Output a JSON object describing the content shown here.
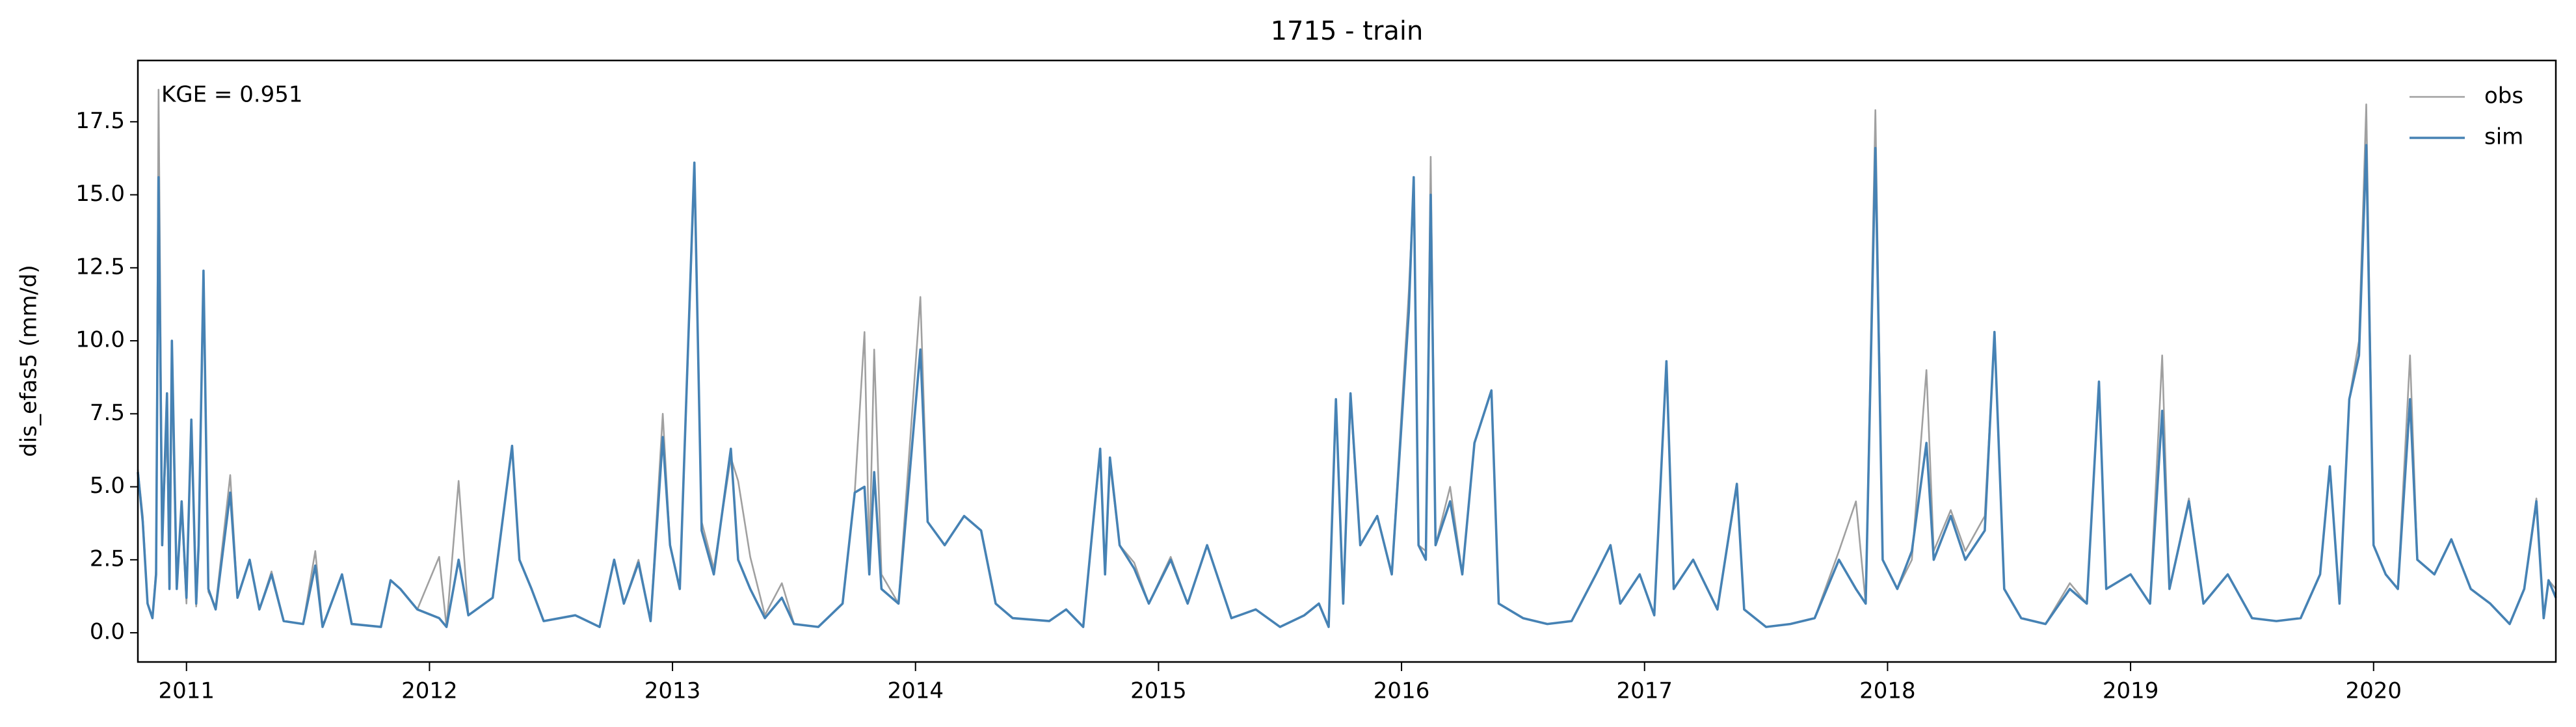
{
  "chart_data": {
    "type": "line",
    "title": "1715 - train",
    "ylabel": "dis_efas5 (mm/d)",
    "annotation": "KGE = 0.951",
    "legend": "upper right",
    "xlim": [
      2010.8,
      2020.75
    ],
    "xticks": [
      2011,
      2012,
      2013,
      2014,
      2015,
      2016,
      2017,
      2018,
      2019,
      2020
    ],
    "ylim": [
      -1.0,
      19.6
    ],
    "yticks": [
      {
        "value": 0,
        "label": "0.0"
      },
      2.5,
      {
        "value": 5,
        "label": "5.0"
      },
      7.5,
      {
        "value": 10,
        "label": "10.0"
      },
      12.5,
      {
        "value": 15,
        "label": "15.0"
      },
      17.5
    ],
    "x": [
      2010.8,
      2010.82,
      2010.84,
      2010.86,
      2010.875,
      2010.885,
      2010.9,
      2010.92,
      2010.93,
      2010.94,
      2010.96,
      2010.98,
      2011,
      2011.02,
      2011.04,
      2011.05,
      2011.07,
      2011.09,
      2011.12,
      2011.18,
      2011.21,
      2011.26,
      2011.3,
      2011.35,
      2011.4,
      2011.48,
      2011.53,
      2011.56,
      2011.64,
      2011.68,
      2011.8,
      2011.84,
      2011.88,
      2011.95,
      2012.04,
      2012.07,
      2012.12,
      2012.16,
      2012.26,
      2012.34,
      2012.37,
      2012.42,
      2012.47,
      2012.6,
      2012.7,
      2012.76,
      2012.8,
      2012.86,
      2012.91,
      2012.96,
      2012.99,
      2013.03,
      2013.09,
      2013.12,
      2013.17,
      2013.24,
      2013.27,
      2013.32,
      2013.38,
      2013.45,
      2013.5,
      2013.6,
      2013.7,
      2013.75,
      2013.79,
      2013.81,
      2013.83,
      2013.86,
      2013.93,
      2014.02,
      2014.05,
      2014.12,
      2014.2,
      2014.27,
      2014.33,
      2014.4,
      2014.55,
      2014.62,
      2014.69,
      2014.76,
      2014.78,
      2014.8,
      2014.84,
      2014.9,
      2014.96,
      2015.05,
      2015.12,
      2015.2,
      2015.3,
      2015.4,
      2015.5,
      2015.6,
      2015.66,
      2015.7,
      2015.73,
      2015.76,
      2015.79,
      2015.83,
      2015.9,
      2015.96,
      2016.03,
      2016.05,
      2016.07,
      2016.1,
      2016.12,
      2016.14,
      2016.2,
      2016.25,
      2016.3,
      2016.37,
      2016.4,
      2016.5,
      2016.6,
      2016.7,
      2016.8,
      2016.86,
      2016.9,
      2016.98,
      2017.04,
      2017.09,
      2017.12,
      2017.2,
      2017.3,
      2017.38,
      2017.41,
      2017.5,
      2017.6,
      2017.7,
      2017.8,
      2017.87,
      2017.91,
      2017.95,
      2017.98,
      2018.04,
      2018.1,
      2018.16,
      2018.19,
      2018.26,
      2018.32,
      2018.4,
      2018.44,
      2018.48,
      2018.55,
      2018.65,
      2018.75,
      2018.82,
      2018.87,
      2018.9,
      2019,
      2019.08,
      2019.13,
      2019.16,
      2019.24,
      2019.3,
      2019.4,
      2019.5,
      2019.6,
      2019.7,
      2019.78,
      2019.82,
      2019.86,
      2019.9,
      2019.94,
      2019.97,
      2020,
      2020.05,
      2020.1,
      2020.15,
      2020.18,
      2020.25,
      2020.32,
      2020.4,
      2020.48,
      2020.56,
      2020.62,
      2020.67,
      2020.7,
      2020.72,
      2020.75
    ],
    "series": [
      {
        "name": "obs",
        "color": "#a0a0a0",
        "values": [
          5.6,
          4.0,
          1.0,
          0.5,
          2.2,
          18.6,
          3.5,
          7.0,
          1.6,
          9.0,
          1.5,
          4.3,
          1.0,
          7.3,
          0.9,
          2.8,
          12.2,
          1.4,
          0.9,
          5.4,
          1.2,
          2.5,
          0.8,
          2.1,
          0.4,
          0.3,
          2.8,
          0.2,
          2.0,
          0.3,
          0.2,
          1.8,
          1.5,
          0.8,
          2.6,
          0.2,
          5.2,
          0.6,
          1.2,
          6.4,
          2.5,
          1.5,
          0.4,
          0.6,
          0.2,
          2.5,
          1.0,
          2.5,
          0.4,
          7.5,
          3.0,
          1.5,
          15.8,
          3.8,
          2.2,
          6.0,
          5.2,
          2.6,
          0.6,
          1.7,
          0.3,
          0.2,
          1.0,
          4.8,
          10.3,
          2.5,
          9.7,
          2.0,
          1.0,
          11.5,
          3.8,
          3.0,
          4.0,
          3.5,
          1.0,
          0.5,
          0.4,
          0.8,
          0.2,
          6.2,
          2.0,
          5.8,
          3.0,
          2.4,
          1.0,
          2.6,
          1.0,
          3.0,
          0.5,
          0.8,
          0.2,
          0.6,
          1.0,
          0.2,
          7.8,
          1.0,
          8.0,
          3.0,
          4.0,
          2.0,
          11.7,
          15.4,
          3.0,
          2.8,
          16.3,
          3.0,
          5.0,
          2.0,
          6.5,
          8.3,
          1.0,
          0.5,
          0.3,
          0.4,
          2.0,
          3.0,
          1.0,
          2.0,
          0.6,
          9.3,
          1.5,
          2.5,
          0.8,
          5.0,
          0.8,
          0.2,
          0.3,
          0.5,
          2.8,
          4.5,
          1.0,
          17.9,
          2.5,
          1.5,
          2.5,
          9.0,
          2.8,
          4.2,
          2.8,
          4.0,
          10.2,
          1.5,
          0.5,
          0.3,
          1.7,
          1.0,
          8.5,
          1.5,
          2.0,
          1.0,
          9.5,
          1.5,
          4.6,
          1.0,
          2.0,
          0.5,
          0.4,
          0.5,
          2.0,
          5.7,
          1.0,
          8.0,
          10.0,
          18.1,
          3.0,
          2.0,
          1.5,
          9.5,
          2.5,
          2.0,
          3.2,
          1.5,
          1.0,
          0.3,
          1.5,
          4.6,
          0.5,
          1.8,
          1.5
        ]
      },
      {
        "name": "sim",
        "color": "#4682b4",
        "values": [
          5.5,
          3.8,
          1.0,
          0.5,
          2.0,
          15.6,
          3.0,
          8.2,
          1.5,
          10.0,
          1.5,
          4.5,
          1.2,
          7.3,
          1.0,
          3.0,
          12.4,
          1.5,
          0.8,
          4.8,
          1.2,
          2.5,
          0.8,
          2.0,
          0.4,
          0.3,
          2.3,
          0.2,
          2.0,
          0.3,
          0.2,
          1.8,
          1.5,
          0.8,
          0.5,
          0.2,
          2.5,
          0.6,
          1.2,
          6.4,
          2.5,
          1.5,
          0.4,
          0.6,
          0.2,
          2.5,
          1.0,
          2.4,
          0.4,
          6.7,
          3.0,
          1.5,
          16.1,
          3.5,
          2.0,
          6.3,
          2.5,
          1.5,
          0.5,
          1.2,
          0.3,
          0.2,
          1.0,
          4.8,
          5.0,
          2.0,
          5.5,
          1.5,
          1.0,
          9.7,
          3.8,
          3.0,
          4.0,
          3.5,
          1.0,
          0.5,
          0.4,
          0.8,
          0.2,
          6.3,
          2.0,
          6.0,
          3.0,
          2.2,
          1.0,
          2.5,
          1.0,
          3.0,
          0.5,
          0.8,
          0.2,
          0.6,
          1.0,
          0.2,
          8.0,
          1.0,
          8.2,
          3.0,
          4.0,
          2.0,
          11.0,
          15.6,
          3.0,
          2.5,
          15.0,
          3.0,
          4.5,
          2.0,
          6.5,
          8.3,
          1.0,
          0.5,
          0.3,
          0.4,
          2.0,
          3.0,
          1.0,
          2.0,
          0.6,
          9.3,
          1.5,
          2.5,
          0.8,
          5.1,
          0.8,
          0.2,
          0.3,
          0.5,
          2.5,
          1.5,
          1.0,
          16.6,
          2.5,
          1.5,
          2.8,
          6.5,
          2.5,
          4.0,
          2.5,
          3.5,
          10.3,
          1.5,
          0.5,
          0.3,
          1.5,
          1.0,
          8.6,
          1.5,
          2.0,
          1.0,
          7.6,
          1.5,
          4.5,
          1.0,
          2.0,
          0.5,
          0.4,
          0.5,
          2.0,
          5.7,
          1.0,
          8.0,
          9.5,
          16.7,
          3.0,
          2.0,
          1.5,
          8.0,
          2.5,
          2.0,
          3.2,
          1.5,
          1.0,
          0.3,
          1.5,
          4.5,
          0.5,
          1.8,
          1.2
        ]
      }
    ]
  }
}
